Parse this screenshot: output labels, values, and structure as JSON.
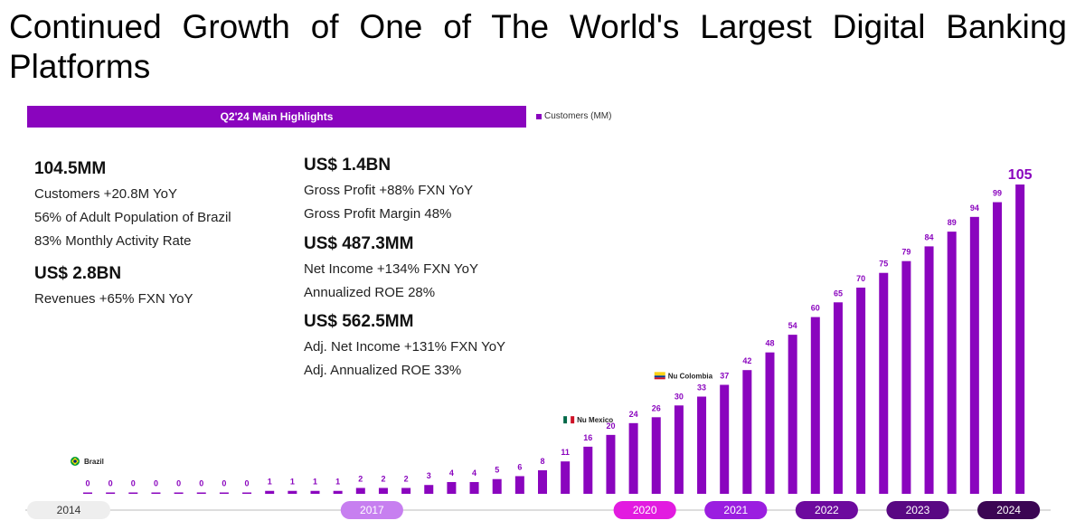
{
  "slide": {
    "title": "Continued Growth of One of The World's Largest Digital Banking Platforms"
  },
  "highlights": {
    "header": "Q2'24 Main Highlights",
    "left": [
      {
        "value": "104.5MM",
        "lines": [
          "Customers +20.8M YoY",
          "56% of Adult Population of Brazil",
          "83% Monthly Activity Rate"
        ]
      },
      {
        "value": "US$ 2.8BN",
        "lines": [
          "Revenues +65%  FXN YoY"
        ]
      }
    ],
    "right": [
      {
        "value": "US$ 1.4BN",
        "lines": [
          "Gross Profit +88%  FXN YoY",
          "Gross Profit Margin 48%"
        ]
      },
      {
        "value": "US$ 487.3MM",
        "lines": [
          "Net Income +134% FXN YoY",
          "Annualized ROE 28%"
        ]
      },
      {
        "value": "US$ 562.5MM",
        "lines": [
          "Adj. Net Income +131% FXN YoY",
          "Adj. Annualized ROE 33%"
        ]
      }
    ]
  },
  "chart_data": {
    "type": "bar",
    "legend": "Customers (MM)",
    "legend_position": "top-left",
    "series": [
      {
        "name": "Customers (MM)",
        "color": "#8a05be",
        "values": [
          0,
          0,
          0,
          0,
          0,
          0,
          0,
          0,
          1,
          1,
          1,
          1,
          2,
          2,
          2,
          3,
          4,
          4,
          5,
          6,
          8,
          11,
          16,
          20,
          24,
          26,
          30,
          33,
          37,
          42,
          48,
          54,
          60,
          65,
          70,
          75,
          79,
          84,
          89,
          94,
          99,
          105
        ]
      }
    ],
    "ylim": [
      0,
      105
    ],
    "grid": false,
    "x_axis_years": [
      {
        "label": "2014",
        "start": 0,
        "end": 1,
        "fill": "#eeeeee",
        "dark_text": true
      },
      {
        "label": "2017",
        "start": 12,
        "end": 13,
        "fill": "#c77ff0",
        "dark_text": false
      },
      {
        "label": "2020",
        "start": 24,
        "end": 25,
        "fill": "#e21be0",
        "dark_text": false
      },
      {
        "label": "2021",
        "start": 28,
        "end": 29,
        "fill": "#9b1ee0",
        "dark_text": false
      },
      {
        "label": "2022",
        "start": 32,
        "end": 33,
        "fill": "#6d0a9e",
        "dark_text": false
      },
      {
        "label": "2023",
        "start": 36,
        "end": 37,
        "fill": "#590883",
        "dark_text": false
      },
      {
        "label": "2024",
        "start": 40,
        "end": 41,
        "fill": "#3b0653",
        "dark_text": false
      }
    ],
    "annotations": [
      {
        "label": "Brazil",
        "index": 0,
        "flag": "brazil"
      },
      {
        "label": "Nu Mexico",
        "index": 21,
        "flag": "mexico"
      },
      {
        "label": "Nu Colombia",
        "index": 25,
        "flag": "colombia"
      }
    ]
  }
}
